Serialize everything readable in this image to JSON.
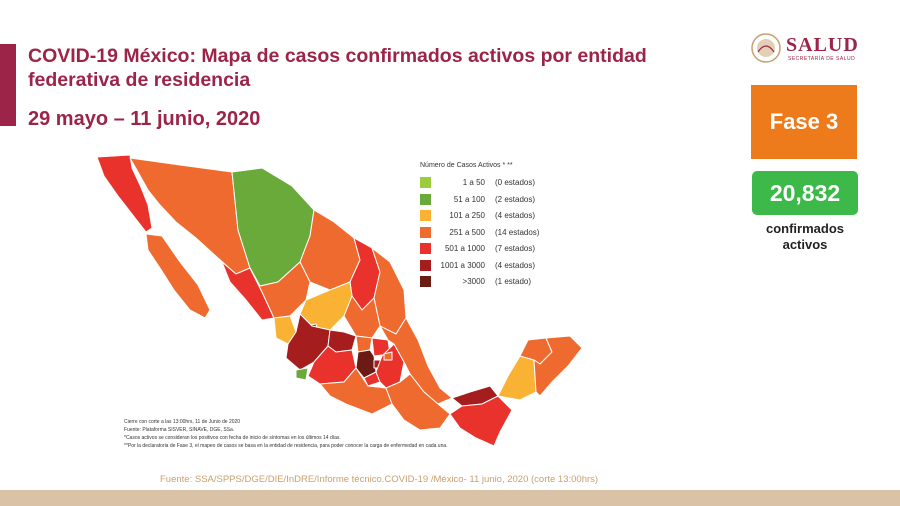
{
  "header": {
    "title": "COVID-19 México: Mapa de casos confirmados activos por entidad federativa de residencia",
    "date_range": "29 mayo – 11 junio, 2020"
  },
  "logo": {
    "name": "SALUD",
    "subtitle": "SECRETARÍA DE SALUD"
  },
  "phase": {
    "label": "Fase 3",
    "color": "#ee7b1b"
  },
  "active_cases": {
    "value": "20,832",
    "label": "confirmados activos",
    "color": "#3db94a"
  },
  "legend": {
    "title": "Número de Casos Activos * **",
    "items": [
      {
        "range": "1 a 50",
        "count": "(0 estados)",
        "color": "#9ccc3c"
      },
      {
        "range": "51 a 100",
        "count": "(2 estados)",
        "color": "#6aaa3a"
      },
      {
        "range": "101 a 250",
        "count": "(4 estados)",
        "color": "#f9b233"
      },
      {
        "range": "251 a 500",
        "count": "(14 estados)",
        "color": "#ef6a2e"
      },
      {
        "range": "501 a 1000",
        "count": "(7 estados)",
        "color": "#e8322b"
      },
      {
        "range": "1001 a 3000",
        "count": "(4 estados)",
        "color": "#a61d1d"
      },
      {
        "range": ">3000",
        "count": "(1 estado)",
        "color": "#6b1a14"
      }
    ]
  },
  "notes": [
    "Cierre con corte a las 13:00hrs, 11 de Junio de 2020",
    "Fuente: Plataforma SISVER, SINAVE, DGE, SSa.",
    "*Casos activos se consideran los positivos con fecha de inicio de síntomas en los últimos 14 días.",
    "**Por la declaratoria de Fase 3, el mapeo de casos se basa en la entidad de residencia, para poder conocer la carga de enfermedad en cada una."
  ],
  "source": "Fuente: SSA/SPPS/DGE/DIE/InDRE/Informe técnico.COVID-19 /México- 11 junio, 2020 (corte 13:00hrs)",
  "colors": {
    "accent": "#9d2449",
    "source_text": "#c8a06e",
    "band": "#d9c2a6"
  }
}
